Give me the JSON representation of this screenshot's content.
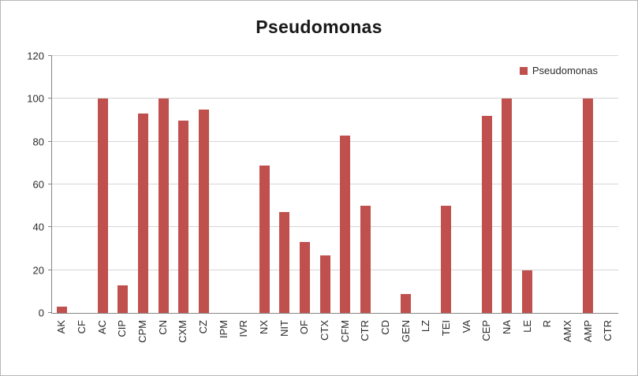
{
  "chart_data": {
    "type": "bar",
    "title": "Pseudomonas",
    "categories": [
      "AK",
      "CF",
      "AC",
      "CIP",
      "CPM",
      "CN",
      "CXM",
      "CZ",
      "IPM",
      "IVR",
      "NX",
      "NIT",
      "OF",
      "CTX",
      "CFM",
      "CTR",
      "CD",
      "GEN",
      "LZ",
      "TEI",
      "VA",
      "CEP",
      "NA",
      "LE",
      "R",
      "AMX",
      "AMP",
      "CTR"
    ],
    "values": [
      3,
      0,
      100,
      13,
      93,
      100,
      90,
      95,
      0,
      0,
      69,
      47,
      33,
      27,
      83,
      50,
      0,
      9,
      0,
      50,
      0,
      92,
      100,
      20,
      0,
      0,
      100,
      0
    ],
    "xlabel": "",
    "ylabel": "",
    "ylim": [
      0,
      120
    ],
    "ytick_interval": 20,
    "yticks": [
      0,
      20,
      40,
      60,
      80,
      100,
      120
    ],
    "grid": true,
    "legend": [
      "Pseudomonas"
    ],
    "legend_position": "top-right",
    "bar_color": "#C0504D"
  }
}
